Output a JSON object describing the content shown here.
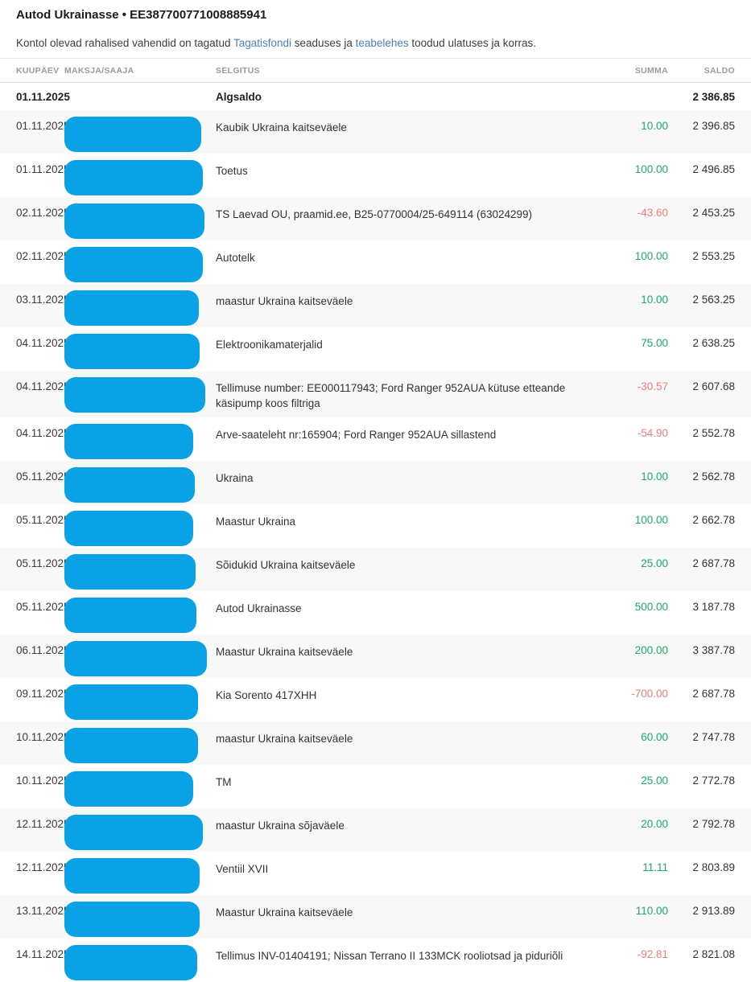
{
  "header": {
    "title": "Autod Ukrainasse • EE387700771008885941",
    "notice": {
      "prefix": "Kontol olevad rahalised vahendid on tagatud ",
      "link1": "Tagatisfondi",
      "middle": " seaduses ja ",
      "link2": "teabelehes",
      "suffix": " toodud ulatuses ja korras."
    }
  },
  "colors": {
    "redaction": "#09a2e6",
    "positive": "#1caa6c",
    "negative": "#ef7c7c",
    "link": "#4a7fbe"
  },
  "table": {
    "columns": {
      "date": "KUUPÄEV",
      "payer": "MAKSJA/SAAJA",
      "description": "SELGITUS",
      "amount": "SUMMA",
      "balance": "SALDO"
    },
    "opening_row": {
      "date": "01.11.2025",
      "description": "Algsaldo",
      "balance": "2 386.85"
    },
    "rows": [
      {
        "date": "01.11.2025",
        "description": "Kaubik Ukraina kaitseväele",
        "amount": "10.00",
        "balance": "2 396.85",
        "redaction_width": 170
      },
      {
        "date": "01.11.2025",
        "description": "Toetus",
        "amount": "100.00",
        "balance": "2 496.85",
        "redaction_width": 172
      },
      {
        "date": "02.11.2025",
        "description": "TS Laevad OU, praamid.ee, B25-0770004/25-649114 (63024299)",
        "amount": "-43.60",
        "balance": "2 453.25",
        "redaction_width": 174
      },
      {
        "date": "02.11.2025",
        "description": "Autotelk",
        "amount": "100.00",
        "balance": "2 553.25",
        "redaction_width": 172
      },
      {
        "date": "03.11.2025",
        "description": "maastur Ukraina kaitseväele",
        "amount": "10.00",
        "balance": "2 563.25",
        "redaction_width": 167
      },
      {
        "date": "04.11.2025",
        "description": "Elektroonikamaterjalid",
        "amount": "75.00",
        "balance": "2 638.25",
        "redaction_width": 168
      },
      {
        "date": "04.11.2025",
        "description": "Tellimuse number: EE000117943; Ford Ranger 952AUA kütuse etteande käsipump koos filtriga",
        "amount": "-30.57",
        "balance": "2 607.68",
        "redaction_width": 175
      },
      {
        "date": "04.11.2025",
        "description": "Arve-saateleht nr:165904; Ford Ranger 952AUA sillastend",
        "amount": "-54.90",
        "balance": "2 552.78",
        "redaction_width": 160
      },
      {
        "date": "05.11.2025",
        "description": "Ukraina",
        "amount": "10.00",
        "balance": "2 562.78",
        "redaction_width": 162
      },
      {
        "date": "05.11.2025",
        "description": "Maastur Ukraina",
        "amount": "100.00",
        "balance": "2 662.78",
        "redaction_width": 160
      },
      {
        "date": "05.11.2025",
        "description": "Sõidukid Ukraina kaitseväele",
        "amount": "25.00",
        "balance": "2 687.78",
        "redaction_width": 163
      },
      {
        "date": "05.11.2025",
        "description": "Autod Ukrainasse",
        "amount": "500.00",
        "balance": "3 187.78",
        "redaction_width": 164
      },
      {
        "date": "06.11.2025",
        "description": "Maastur Ukraina kaitseväele",
        "amount": "200.00",
        "balance": "3 387.78",
        "redaction_width": 177
      },
      {
        "date": "09.11.2025",
        "description": "Kia Sorento 417XHH",
        "amount": "-700.00",
        "balance": "2 687.78",
        "redaction_width": 166
      },
      {
        "date": "10.11.2025",
        "description": "maastur Ukraina kaitseväele",
        "amount": "60.00",
        "balance": "2 747.78",
        "redaction_width": 166
      },
      {
        "date": "10.11.2025",
        "description": "TM",
        "amount": "25.00",
        "balance": "2 772.78",
        "redaction_width": 160
      },
      {
        "date": "12.11.2025",
        "description": "maastur Ukraina sõjaväele",
        "amount": "20.00",
        "balance": "2 792.78",
        "redaction_width": 172
      },
      {
        "date": "12.11.2025",
        "description": "Ventiil XVII",
        "amount": "11.11",
        "balance": "2 803.89",
        "redaction_width": 168
      },
      {
        "date": "13.11.2025",
        "description": "Maastur Ukraina kaitseväele",
        "amount": "110.00",
        "balance": "2 913.89",
        "redaction_width": 168
      },
      {
        "date": "14.11.2025",
        "description": "Tellimus INV-01404191; Nissan Terrano II 133MCK rooliotsad ja piduriõli",
        "amount": "-92.81",
        "balance": "2 821.08",
        "redaction_width": 165
      }
    ]
  }
}
